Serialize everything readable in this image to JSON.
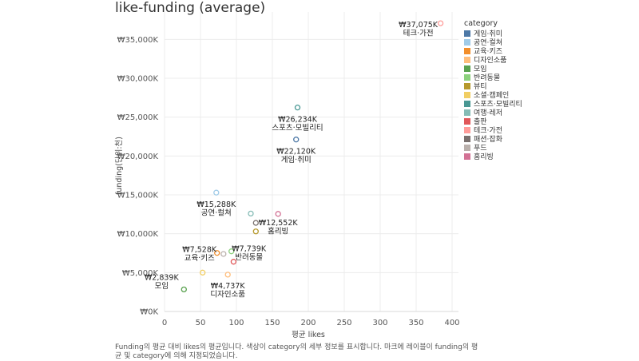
{
  "page": {
    "title": "like-funding (average)",
    "footer": "Funding의 평균 대비 likes의 평균입니다. 색상이 category의 세부 정보를 표시합니다. 마크에 레이블이 funding의 평균 및 category에 의해 지정되었습니다."
  },
  "chart_data": {
    "type": "scatter",
    "title": "like-funding (average)",
    "xlabel": "평균 likes",
    "ylabel": "funding(단위:천)",
    "xlim": [
      0,
      400
    ],
    "ylim": [
      0,
      37500
    ],
    "x_ticks": [
      "0",
      "50",
      "100",
      "150",
      "200",
      "250",
      "300",
      "350",
      "400"
    ],
    "y_ticks": [
      "₩0K",
      "₩5,000K",
      "₩10,000K",
      "₩15,000K",
      "₩20,000K",
      "₩25,000K",
      "₩30,000K",
      "₩35,000K"
    ],
    "grid": true,
    "legend_title": "category",
    "legend_position": "right",
    "points": [
      {
        "category": "게임·취미",
        "x": 183,
        "y": 22120,
        "color": "#4e79a7",
        "label_value": "₩22,120K",
        "label_category": "게임·취미"
      },
      {
        "category": "공연·컬쳐",
        "x": 72,
        "y": 15288,
        "color": "#a0cbe8",
        "label_value": "₩15,288K",
        "label_category": "공연·컬쳐"
      },
      {
        "category": "교육·키즈",
        "x": 73,
        "y": 7528,
        "color": "#f28e2b",
        "label_value": "₩7,528K",
        "label_category": "교육·키즈"
      },
      {
        "category": "디자인소품",
        "x": 88,
        "y": 4737,
        "color": "#ffbe7d",
        "label_value": "₩4,737K",
        "label_category": "디자인소품"
      },
      {
        "category": "모임",
        "x": 27,
        "y": 2839,
        "color": "#59a14f",
        "label_value": "₩2,839K",
        "label_category": "모임"
      },
      {
        "category": "반려동물",
        "x": 93,
        "y": 7739,
        "color": "#8cd17d",
        "label_value": "₩7,739K",
        "label_category": "반려동물"
      },
      {
        "category": "뷰티",
        "x": 127,
        "y": 10300,
        "color": "#b6992d"
      },
      {
        "category": "소셜·캠페인",
        "x": 53,
        "y": 5000,
        "color": "#f1ce63"
      },
      {
        "category": "스포츠·모빌리티",
        "x": 185,
        "y": 26234,
        "color": "#499894",
        "label_value": "₩26,234K",
        "label_category": "스포츠·모빌리티"
      },
      {
        "category": "여행·레저",
        "x": 120,
        "y": 12600,
        "color": "#86bcb6"
      },
      {
        "category": "출판",
        "x": 96,
        "y": 6400,
        "color": "#e15759"
      },
      {
        "category": "테크·가전",
        "x": 384,
        "y": 37075,
        "color": "#ff9d9a",
        "label_value": "₩37,075K",
        "label_category": "테크·가전"
      },
      {
        "category": "패션·잡화",
        "x": 127,
        "y": 11400,
        "color": "#79706e"
      },
      {
        "category": "푸드",
        "x": 82,
        "y": 7400,
        "color": "#bab0ac"
      },
      {
        "category": "홈리빙",
        "x": 158,
        "y": 12552,
        "color": "#d37295",
        "label_value": "₩12,552K",
        "label_category": "홈리빙"
      }
    ]
  },
  "legend": {
    "title": "category",
    "items": [
      {
        "label": "게임·취미",
        "color": "#4e79a7"
      },
      {
        "label": "공연·컬쳐",
        "color": "#a0cbe8"
      },
      {
        "label": "교육·키즈",
        "color": "#f28e2b"
      },
      {
        "label": "디자인소품",
        "color": "#ffbe7d"
      },
      {
        "label": "모임",
        "color": "#59a14f"
      },
      {
        "label": "반려동물",
        "color": "#8cd17d"
      },
      {
        "label": "뷰티",
        "color": "#b6992d"
      },
      {
        "label": "소셜·캠페인",
        "color": "#f1ce63"
      },
      {
        "label": "스포츠·모빌리티",
        "color": "#499894"
      },
      {
        "label": "여행·레저",
        "color": "#86bcb6"
      },
      {
        "label": "출판",
        "color": "#e15759"
      },
      {
        "label": "테크·가전",
        "color": "#ff9d9a"
      },
      {
        "label": "패션·잡화",
        "color": "#79706e"
      },
      {
        "label": "푸드",
        "color": "#bab0ac"
      },
      {
        "label": "홈리빙",
        "color": "#d37295"
      }
    ]
  }
}
